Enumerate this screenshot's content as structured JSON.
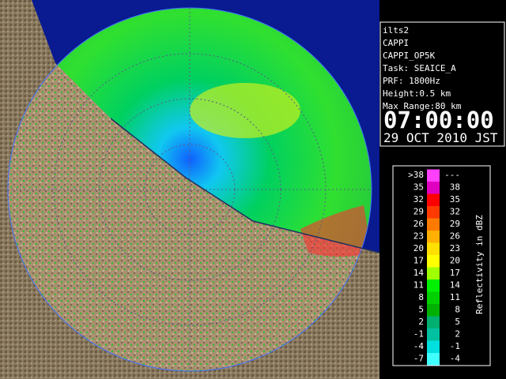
{
  "info": {
    "lines": [
      "ilts2",
      "CAPPI",
      "CAPPI_OP5K",
      "Task: SEAICE_A",
      "PRF: 1800Hz",
      "Height:0.5 km",
      "Max Range:80 km"
    ],
    "time": "07:00:00",
    "date": "29 OCT 2010 JST"
  },
  "legend": {
    "title": "Reflectivity in dBZ",
    "rows": [
      {
        "from": ">38",
        "to": "---",
        "color": "#ff40ff"
      },
      {
        "from": "35",
        "to": "38",
        "color": "#e000c0"
      },
      {
        "from": "32",
        "to": "35",
        "color": "#ff0000"
      },
      {
        "from": "29",
        "to": "32",
        "color": "#ff3a00"
      },
      {
        "from": "26",
        "to": "29",
        "color": "#ff7a00"
      },
      {
        "from": "23",
        "to": "26",
        "color": "#ffb000"
      },
      {
        "from": "20",
        "to": "23",
        "color": "#ffe000"
      },
      {
        "from": "17",
        "to": "20",
        "color": "#ffff00"
      },
      {
        "from": "14",
        "to": "17",
        "color": "#a0ff00"
      },
      {
        "from": "11",
        "to": "14",
        "color": "#00f000"
      },
      {
        "from": "8",
        "to": "11",
        "color": "#00d000"
      },
      {
        "from": "5",
        "to": "8",
        "color": "#00b000"
      },
      {
        "from": "2",
        "to": "5",
        "color": "#00b070"
      },
      {
        "from": "-1",
        "to": "2",
        "color": "#00c0a0"
      },
      {
        "from": "-4",
        "to": "-1",
        "color": "#00e0e0"
      },
      {
        "from": "-7",
        "to": "-4",
        "color": "#40ffff"
      }
    ]
  }
}
